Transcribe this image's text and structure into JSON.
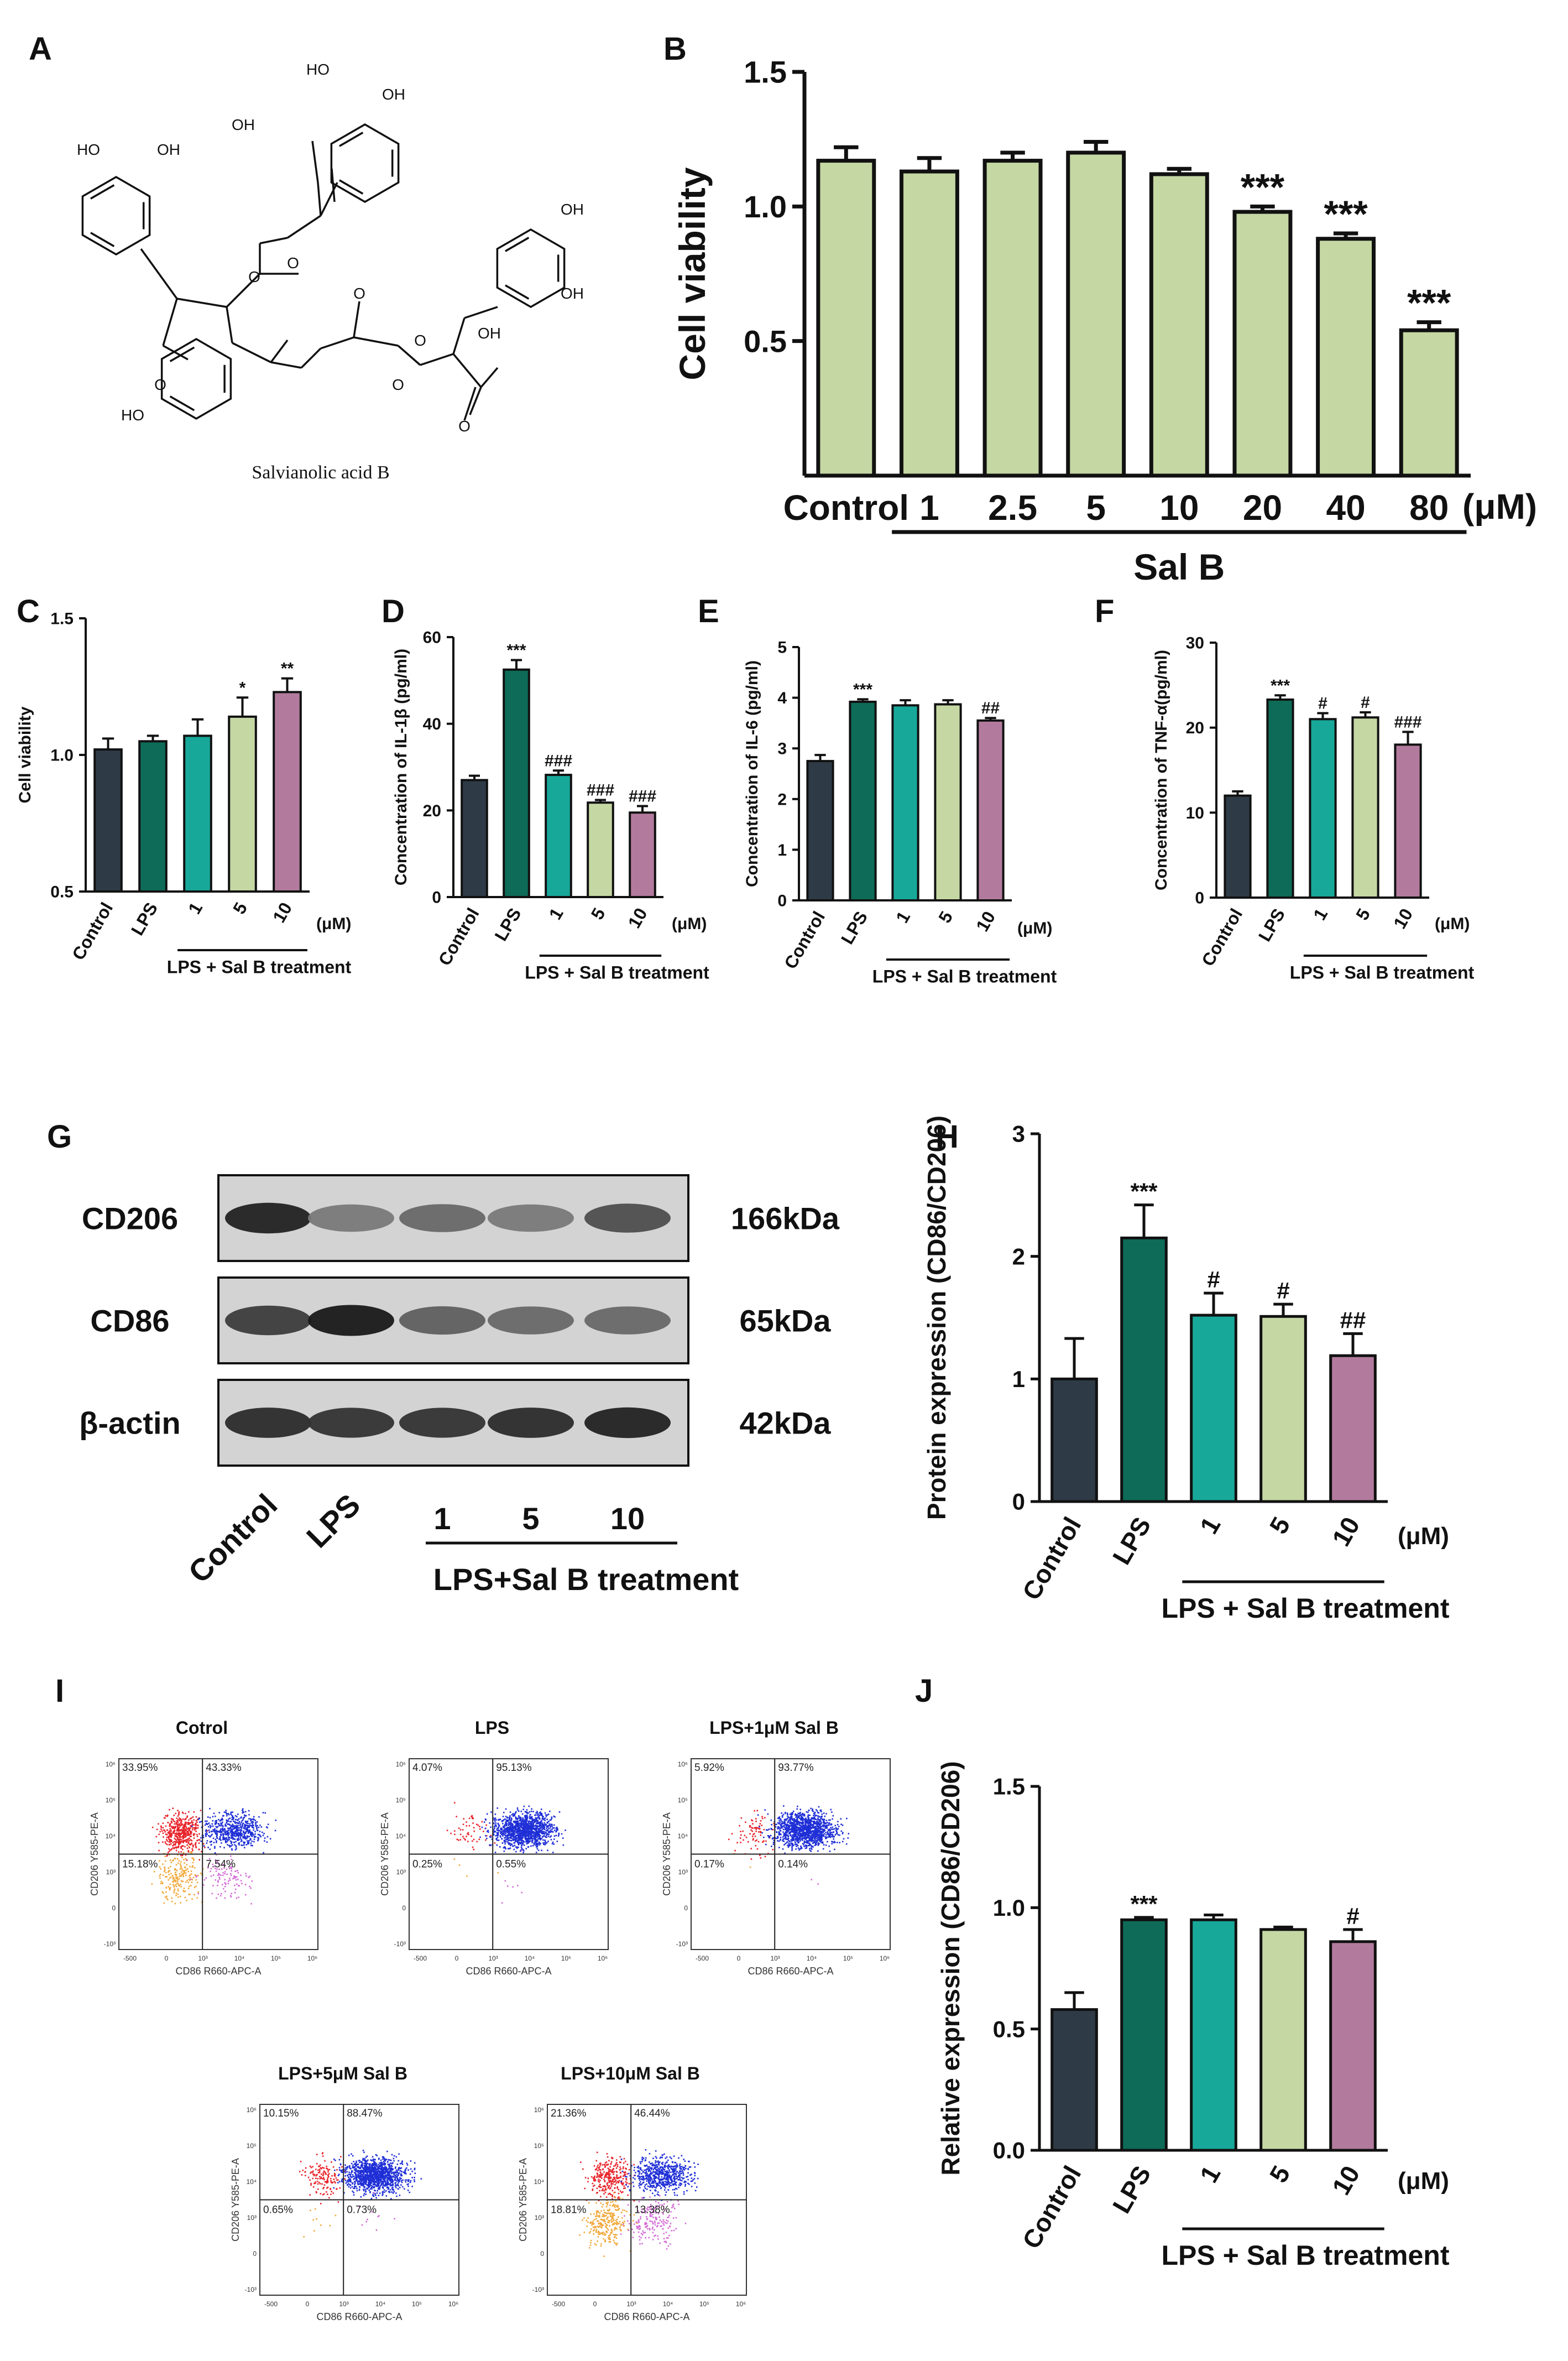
{
  "colors": {
    "control": "#2e3b46",
    "lps": "#0d6b57",
    "c1": "#18a89a",
    "c5": "#c5d7a3",
    "c10": "#b27b9d",
    "b_bar": "#c5d7a3",
    "dot_red": "#e8232a",
    "dot_blue": "#1f2fd6",
    "dot_orange": "#f0a83a",
    "dot_pink": "#d36bd6"
  },
  "panel_letters": {
    "A": "A",
    "B": "B",
    "C": "C",
    "D": "D",
    "E": "E",
    "F": "F",
    "G": "G",
    "H": "H",
    "I": "I",
    "J": "J"
  },
  "panelA": {
    "compound_name": "Salvianolic acid B",
    "atom_labels": [
      "HO",
      "OH",
      "HO",
      "OH",
      "O",
      "OH",
      "O",
      "O",
      "OH",
      "OH",
      "O",
      "O",
      "O",
      "OH",
      "O",
      "HO"
    ]
  },
  "chart_data": [
    {
      "id": "B",
      "type": "bar",
      "ylabel": "Cell viability",
      "ylim": [
        0,
        1.5
      ],
      "yticks": [
        "0.5",
        "1.0",
        "1.5"
      ],
      "categories": [
        "Control",
        "1",
        "2.5",
        "5",
        "10",
        "20",
        "40",
        "80"
      ],
      "unit": "(μM)",
      "group_label": "Sal B",
      "values": [
        1.17,
        1.13,
        1.17,
        1.2,
        1.12,
        0.98,
        0.88,
        0.54
      ],
      "errors": [
        0.05,
        0.05,
        0.03,
        0.04,
        0.02,
        0.02,
        0.02,
        0.03
      ],
      "significance": [
        "",
        "",
        "",
        "",
        "",
        "***",
        "***",
        "***"
      ]
    },
    {
      "id": "C",
      "type": "bar",
      "ylabel": "Cell viability",
      "ylim": [
        0.5,
        1.5
      ],
      "yticks": [
        "0.5",
        "1.0",
        "1.5"
      ],
      "categories": [
        "Control",
        "LPS",
        "1",
        "5",
        "10"
      ],
      "unit": "(μM)",
      "group_label": "LPS + Sal B treatment",
      "values": [
        1.02,
        1.05,
        1.07,
        1.14,
        1.23
      ],
      "errors": [
        0.04,
        0.02,
        0.06,
        0.07,
        0.05
      ],
      "significance": [
        "",
        "",
        "",
        "*",
        "**"
      ]
    },
    {
      "id": "D",
      "type": "bar",
      "ylabel": "Concentration of IL-1β (pg/ml)",
      "ylim": [
        0,
        60
      ],
      "yticks": [
        "0",
        "20",
        "40",
        "60"
      ],
      "categories": [
        "Control",
        "LPS",
        "1",
        "5",
        "10"
      ],
      "unit": "(μM)",
      "group_label": "LPS + Sal B treatment",
      "values": [
        27,
        52.5,
        28.2,
        21.8,
        19.5
      ],
      "errors": [
        1.0,
        2.2,
        1.0,
        0.6,
        1.5
      ],
      "significance": [
        "",
        "***",
        "###",
        "###",
        "###"
      ]
    },
    {
      "id": "E",
      "type": "bar",
      "ylabel": "Concentration of IL-6 (pg/ml)",
      "ylim": [
        0,
        5
      ],
      "yticks": [
        "0",
        "1",
        "2",
        "3",
        "4",
        "5"
      ],
      "categories": [
        "Control",
        "LPS",
        "1",
        "5",
        "10"
      ],
      "unit": "(μM)",
      "group_label": "LPS + Sal B treatment",
      "values": [
        2.75,
        3.92,
        3.85,
        3.87,
        3.55
      ],
      "errors": [
        0.12,
        0.05,
        0.1,
        0.08,
        0.05
      ],
      "significance": [
        "",
        "***",
        "",
        "",
        "##"
      ]
    },
    {
      "id": "F",
      "type": "bar",
      "ylabel": "Concentration of TNF-α(pg/ml)",
      "ylim": [
        0,
        30
      ],
      "yticks": [
        "0",
        "10",
        "20",
        "30"
      ],
      "categories": [
        "Control",
        "LPS",
        "1",
        "5",
        "10"
      ],
      "unit": "(μM)",
      "group_label": "LPS + Sal B treatment",
      "values": [
        12,
        23.3,
        21,
        21.2,
        18
      ],
      "errors": [
        0.5,
        0.5,
        0.7,
        0.6,
        1.5
      ],
      "significance": [
        "",
        "***",
        "#",
        "#",
        "###"
      ]
    },
    {
      "id": "H",
      "type": "bar",
      "ylabel": "Protein expression (CD86/CD206)",
      "ylim": [
        0,
        3
      ],
      "yticks": [
        "0",
        "1",
        "2",
        "3"
      ],
      "categories": [
        "Control",
        "LPS",
        "1",
        "5",
        "10"
      ],
      "unit": "(μM)",
      "group_label": "LPS + Sal B treatment",
      "values": [
        1.0,
        2.15,
        1.52,
        1.51,
        1.19
      ],
      "errors": [
        0.33,
        0.27,
        0.18,
        0.1,
        0.18
      ],
      "significance": [
        "",
        "***",
        "#",
        "#",
        "##"
      ]
    },
    {
      "id": "J",
      "type": "bar",
      "ylabel": "Relative expression (CD86/CD206)",
      "ylim": [
        0,
        1.5
      ],
      "yticks": [
        "0.0",
        "0.5",
        "1.0",
        "1.5"
      ],
      "categories": [
        "Control",
        "LPS",
        "1",
        "5",
        "10"
      ],
      "unit": "(μM)",
      "group_label": "LPS + Sal B treatment",
      "values": [
        0.58,
        0.95,
        0.95,
        0.91,
        0.86
      ],
      "errors": [
        0.07,
        0.01,
        0.02,
        0.01,
        0.05
      ],
      "significance": [
        "",
        "***",
        "",
        "",
        "#"
      ]
    }
  ],
  "blot": {
    "proteins": [
      {
        "name": "CD206",
        "size": "166kDa",
        "intensity": [
          0.95,
          0.45,
          0.55,
          0.45,
          0.7
        ]
      },
      {
        "name": "CD86",
        "size": "65kDa",
        "intensity": [
          0.8,
          1.0,
          0.6,
          0.55,
          0.55
        ]
      },
      {
        "name": "β-actin",
        "size": "42kDa",
        "intensity": [
          0.9,
          0.85,
          0.85,
          0.9,
          0.95
        ]
      }
    ],
    "lanes": [
      "Control",
      "LPS",
      "1",
      "5",
      "10"
    ],
    "group_label": "LPS+Sal B treatment"
  },
  "flow": {
    "y_axis": "CD206 Y585-PE-A",
    "x_axis": "CD86 R660-APC-A",
    "x_ticks": [
      "-500",
      "0",
      "10³",
      "10⁴",
      "10⁵",
      "10⁶"
    ],
    "y_ticks": [
      "10⁶",
      "10⁵",
      "10⁴",
      "10³",
      "0",
      "-10³"
    ],
    "plots": [
      {
        "title": "Cotrol",
        "q": [
          "33.95%",
          "43.33%",
          "15.18%",
          "7.54%"
        ],
        "fractions": [
          0.34,
          0.43,
          0.15,
          0.08
        ]
      },
      {
        "title": "LPS",
        "q": [
          "4.07%",
          "95.13%",
          "0.25%",
          "0.55%"
        ],
        "fractions": [
          0.04,
          0.95,
          0.0025,
          0.0055
        ]
      },
      {
        "title": "LPS+1μM Sal B",
        "q": [
          "5.92%",
          "93.77%",
          "0.17%",
          "0.14%"
        ],
        "fractions": [
          0.059,
          0.938,
          0.0017,
          0.0014
        ]
      },
      {
        "title": "LPS+5μM Sal B",
        "q": [
          "10.15%",
          "88.47%",
          "0.65%",
          "0.73%"
        ],
        "fractions": [
          0.1,
          0.885,
          0.0065,
          0.0073
        ]
      },
      {
        "title": "LPS+10μM Sal B",
        "q": [
          "21.36%",
          "46.44%",
          "18.81%",
          "13.38%"
        ],
        "fractions": [
          0.21,
          0.46,
          0.19,
          0.13
        ]
      }
    ]
  }
}
